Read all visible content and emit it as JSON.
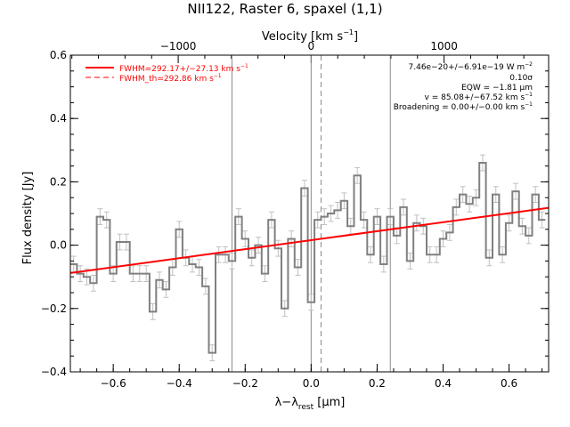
{
  "chart_data": {
    "type": "line",
    "title": "NII122, Raster 6, spaxel (1,1)",
    "xlabel_main": "λ−λ",
    "xlabel_sub": "rest",
    "xlabel_unit": " [μm]",
    "ylabel": "Flux density [Jy]",
    "top_axis_label": "Velocity [km s",
    "top_axis_exp": "−1",
    "top_axis_close": "]",
    "xlim": [
      -0.73,
      0.72
    ],
    "ylim": [
      -0.4,
      0.6
    ],
    "x_ticks": [
      -0.6,
      -0.4,
      -0.2,
      0.0,
      0.2,
      0.4,
      0.6
    ],
    "x_tick_labels": [
      "−0.6",
      "−0.4",
      "−0.2",
      "0.0",
      "0.2",
      "0.4",
      "0.6"
    ],
    "y_ticks": [
      -0.4,
      -0.2,
      0.0,
      0.2,
      0.4,
      0.6
    ],
    "y_tick_labels": [
      "−0.4",
      "−0.2",
      "0.0",
      "0.2",
      "0.4",
      "0.6"
    ],
    "top_ticks_x": [
      -0.403,
      0.0,
      0.403
    ],
    "top_tick_labels": [
      "−1000",
      "0",
      "1000"
    ],
    "vertical_lines_x": [
      -0.24,
      0.0,
      0.24
    ],
    "dashed_line_x": 0.03,
    "grid": false,
    "series": [
      {
        "name": "spectrum",
        "color": "#808080",
        "x": [
          -0.72,
          -0.7,
          -0.68,
          -0.66,
          -0.64,
          -0.62,
          -0.6,
          -0.58,
          -0.56,
          -0.54,
          -0.52,
          -0.5,
          -0.48,
          -0.46,
          -0.44,
          -0.42,
          -0.4,
          -0.38,
          -0.36,
          -0.34,
          -0.32,
          -0.3,
          -0.28,
          -0.26,
          -0.24,
          -0.22,
          -0.2,
          -0.18,
          -0.16,
          -0.14,
          -0.12,
          -0.1,
          -0.08,
          -0.06,
          -0.04,
          -0.02,
          0.0,
          0.02,
          0.04,
          0.06,
          0.08,
          0.1,
          0.12,
          0.14,
          0.16,
          0.18,
          0.2,
          0.22,
          0.24,
          0.26,
          0.28,
          0.3,
          0.32,
          0.34,
          0.36,
          0.38,
          0.4,
          0.42,
          0.44,
          0.46,
          0.48,
          0.5,
          0.52,
          0.54,
          0.56,
          0.58,
          0.6,
          0.62,
          0.64,
          0.66,
          0.68,
          0.7
        ],
        "y": [
          -0.06,
          -0.09,
          -0.1,
          -0.12,
          0.09,
          0.08,
          -0.09,
          0.01,
          0.01,
          -0.09,
          -0.09,
          -0.09,
          -0.21,
          -0.11,
          -0.14,
          -0.07,
          0.05,
          -0.04,
          -0.06,
          -0.07,
          -0.13,
          -0.34,
          -0.03,
          -0.03,
          -0.05,
          0.09,
          0.02,
          -0.04,
          0.0,
          -0.09,
          0.08,
          -0.01,
          -0.2,
          0.02,
          -0.07,
          0.18,
          -0.18,
          0.08,
          0.09,
          0.1,
          0.11,
          0.14,
          0.06,
          0.22,
          0.08,
          -0.03,
          0.09,
          -0.06,
          0.09,
          0.03,
          0.12,
          -0.05,
          0.07,
          0.06,
          -0.03,
          -0.03,
          0.02,
          0.04,
          0.12,
          0.16,
          0.13,
          0.15,
          0.26,
          -0.04,
          0.16,
          -0.03,
          0.07,
          0.17,
          0.06,
          0.03,
          0.16,
          0.08
        ],
        "error": 0.025
      },
      {
        "name": "fit",
        "color": "#ff0000",
        "x": [
          -0.73,
          0.72
        ],
        "y": [
          -0.088,
          0.118
        ]
      }
    ],
    "legend": {
      "placement": "top-left",
      "entries": [
        {
          "label": "FWHM=292.17+/−27.13 km s",
          "exp": "−1",
          "style": "solid",
          "color": "#ff0000"
        },
        {
          "label": "FWHM_th=292.86 km s",
          "exp": "−1",
          "style": "dashed",
          "color": "#ff0000"
        }
      ]
    },
    "annotations": [
      {
        "text": "7.46e−20+/−6.91e−19 W m",
        "exp": "−2"
      },
      {
        "text": "0.10σ",
        "exp": ""
      },
      {
        "text": "EQW = −1.81 μm",
        "exp": ""
      },
      {
        "text": "v = 85.08+/−67.52 km s",
        "exp": "−1"
      },
      {
        "text": "Broadening = 0.00+/−0.00 km s",
        "exp": "−1"
      }
    ]
  }
}
